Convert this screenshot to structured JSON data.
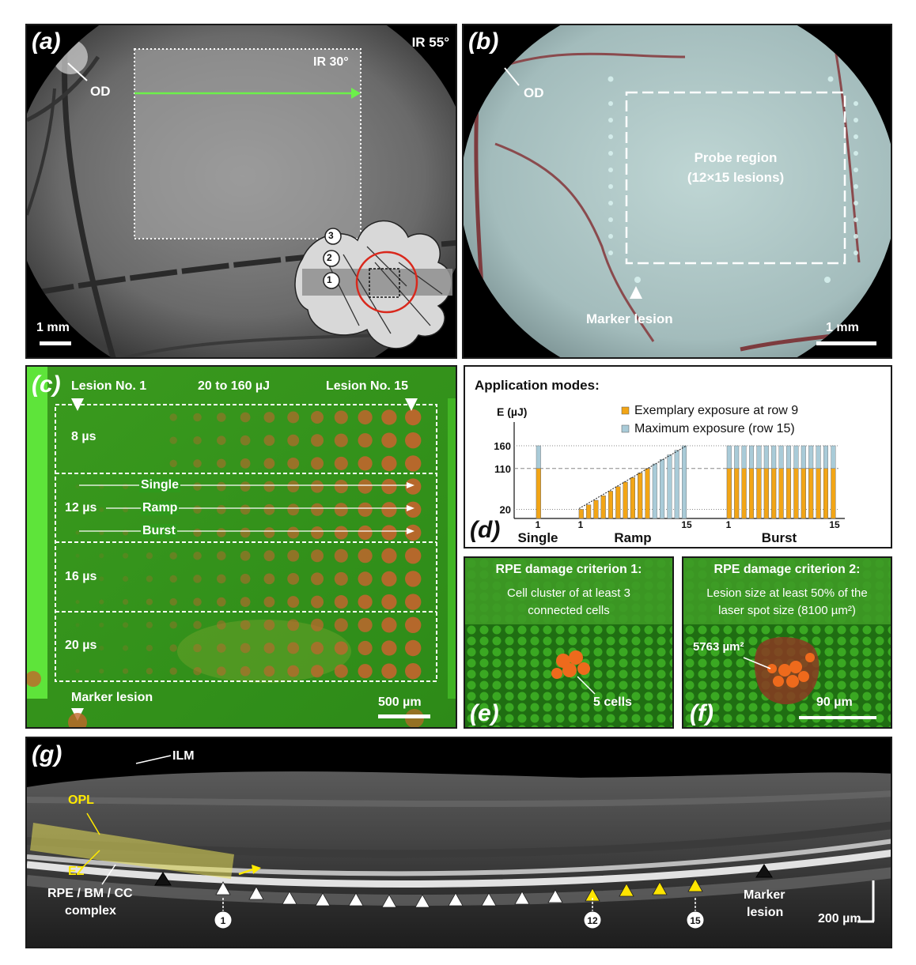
{
  "panel_a": {
    "label": "(a)",
    "ir55": "IR 55°",
    "ir30": "IR 30°",
    "od": "OD",
    "scale": "1 mm",
    "sites": [
      "1",
      "2",
      "3"
    ]
  },
  "panel_b": {
    "label": "(b)",
    "od": "OD",
    "probe_title": "Probe region",
    "probe_sub": "(12×15 lesions)",
    "marker": "Marker lesion",
    "scale": "1 mm"
  },
  "panel_c": {
    "label": "(c)",
    "lesion1": "Lesion No. 1",
    "energy": "20 to 160 µJ",
    "lesion15": "Lesion No. 15",
    "durations": [
      "8 µs",
      "12 µs",
      "16 µs",
      "20 µs"
    ],
    "modes": [
      "Single",
      "Ramp",
      "Burst"
    ],
    "marker": "Marker lesion",
    "scale": "500 µm"
  },
  "panel_d": {
    "label": "(d)",
    "title": "Application modes:",
    "legend": [
      "Exemplary exposure at row 9",
      "Maximum exposure (row 15)"
    ],
    "colors": {
      "exemplary": "#f2a516",
      "maximum": "#a9cbd8"
    },
    "groups": [
      "Single",
      "Ramp",
      "Burst"
    ]
  },
  "chart_data": {
    "type": "bar",
    "title": "Application modes:",
    "ylabel": "E (µJ)",
    "yticks": [
      20,
      110,
      160
    ],
    "ylim": [
      0,
      160
    ],
    "xticks": [
      "1",
      "1",
      "15",
      "1",
      "15"
    ],
    "series": [
      {
        "name": "Exemplary exposure at row 9",
        "single": [
          110
        ],
        "ramp": [
          20,
          30,
          40,
          50,
          60,
          70,
          80,
          90,
          100,
          110
        ],
        "burst": [
          110,
          110,
          110,
          110,
          110,
          110,
          110,
          110,
          110,
          110,
          110,
          110,
          110,
          110,
          110
        ]
      },
      {
        "name": "Maximum exposure (row 15)",
        "single": [
          160
        ],
        "ramp": [
          20,
          30,
          40,
          50,
          60,
          70,
          80,
          90,
          100,
          110,
          120,
          130,
          140,
          150,
          160
        ],
        "burst": [
          160,
          160,
          160,
          160,
          160,
          160,
          160,
          160,
          160,
          160,
          160,
          160,
          160,
          160,
          160
        ]
      }
    ],
    "groups": [
      "Single",
      "Ramp",
      "Burst"
    ],
    "legend": "top"
  },
  "panel_e": {
    "label": "(e)",
    "heading": "RPE damage criterion 1:",
    "line1": "Cell cluster of at least 3",
    "line2": "connected cells",
    "cells": "5 cells"
  },
  "panel_f": {
    "label": "(f)",
    "heading": "RPE damage criterion 2:",
    "line1": "Lesion size at least 50% of the",
    "line2": "laser spot size (8100 µm²)",
    "area": "5763 µm²",
    "scale": "90 µm"
  },
  "panel_g": {
    "label": "(g)",
    "ilm": "ILM",
    "opl": "OPL",
    "ez": "EZ",
    "rpe1": "RPE / BM / CC",
    "rpe2": "complex",
    "marker1": "Marker",
    "marker2": "lesion",
    "scale": "200 µm",
    "numbers": [
      "1",
      "12",
      "15"
    ]
  }
}
